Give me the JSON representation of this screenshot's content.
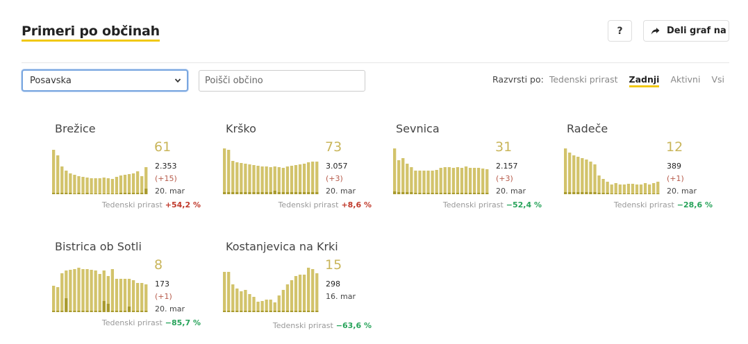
{
  "header": {
    "title": "Primeri po občinah",
    "help_label": "?",
    "share_label": "Deli graf na"
  },
  "controls": {
    "region_selected": "Posavska",
    "search_placeholder": "Poišči občino",
    "sort_label": "Razvrsti po:",
    "sort_options": [
      "Tedenski prirast",
      "Zadnji",
      "Aktivni",
      "Vsi"
    ],
    "sort_active": "Zadnji"
  },
  "colors": {
    "bar": "#d2c36b",
    "bar_dark": "#a89a2e",
    "highlight": "#f0c814",
    "positive": "#c0392b",
    "negative": "#27a35a"
  },
  "weekly_label": "Tedenski prirast",
  "municipalities": [
    {
      "name": "Brežice",
      "current": "61",
      "total": "2.353",
      "delta": "(+15)",
      "date": "20. mar",
      "weekly": "+54,2 %",
      "weekly_sign": "pos",
      "bars": [
        64,
        56,
        40,
        34,
        30,
        28,
        26,
        25,
        24,
        23,
        23,
        23,
        24,
        23,
        22,
        25,
        27,
        28,
        29,
        30,
        33,
        26,
        39
      ],
      "dark": [
        2,
        2,
        2,
        2,
        2,
        1,
        2,
        1,
        2,
        1,
        1,
        1,
        1,
        1,
        1,
        1,
        2,
        2,
        2,
        2,
        2,
        2,
        8
      ]
    },
    {
      "name": "Krško",
      "current": "73",
      "total": "3.057",
      "delta": "(+3)",
      "date": "20. mar",
      "weekly": "+8,6 %",
      "weekly_sign": "pos",
      "bars": [
        66,
        64,
        48,
        46,
        45,
        44,
        43,
        42,
        41,
        40,
        40,
        39,
        40,
        39,
        38,
        40,
        41,
        42,
        43,
        44,
        46,
        47,
        47
      ],
      "dark": [
        3,
        3,
        3,
        3,
        3,
        3,
        3,
        3,
        3,
        3,
        3,
        3,
        5,
        3,
        3,
        3,
        3,
        3,
        3,
        3,
        3,
        3,
        3
      ]
    },
    {
      "name": "Sevnica",
      "current": "31",
      "total": "2.157",
      "delta": "(+3)",
      "date": "20. mar",
      "weekly": "−52,4 %",
      "weekly_sign": "neg",
      "bars": [
        66,
        49,
        52,
        44,
        39,
        34,
        34,
        34,
        34,
        34,
        35,
        38,
        39,
        39,
        38,
        39,
        38,
        40,
        38,
        38,
        38,
        37,
        36
      ],
      "dark": [
        4,
        3,
        3,
        3,
        3,
        2,
        2,
        2,
        2,
        2,
        2,
        2,
        2,
        2,
        2,
        2,
        2,
        2,
        2,
        2,
        2,
        2,
        2
      ]
    },
    {
      "name": "Radeče",
      "current": "12",
      "total": "389",
      "delta": "(+1)",
      "date": "20. mar",
      "weekly": "−28,6 %",
      "weekly_sign": "neg",
      "bars": [
        66,
        60,
        56,
        54,
        52,
        50,
        47,
        43,
        27,
        22,
        18,
        14,
        16,
        14,
        14,
        15,
        15,
        14,
        14,
        16,
        14,
        16,
        18
      ],
      "dark": [
        3,
        3,
        3,
        3,
        3,
        3,
        3,
        3,
        2,
        2,
        2,
        1,
        1,
        1,
        1,
        1,
        1,
        1,
        1,
        1,
        1,
        1,
        1
      ]
    },
    {
      "name": "Bistrica ob Sotli",
      "current": "8",
      "total": "173",
      "delta": "(+1)",
      "date": "20. mar",
      "weekly": "−85,7 %",
      "weekly_sign": "neg",
      "bars": [
        38,
        36,
        56,
        60,
        61,
        62,
        64,
        62,
        62,
        61,
        60,
        55,
        60,
        52,
        62,
        48,
        48,
        48,
        48,
        46,
        42,
        42,
        40
      ],
      "dark": [
        2,
        2,
        2,
        20,
        2,
        2,
        2,
        2,
        2,
        2,
        2,
        2,
        16,
        12,
        2,
        2,
        2,
        2,
        8,
        2,
        2,
        2,
        2
      ]
    },
    {
      "name": "Kostanjevica na Krki",
      "current": "15",
      "total": "298",
      "delta": "",
      "date": "16. mar",
      "weekly": "−63,6 %",
      "weekly_sign": "neg",
      "bars": [
        58,
        58,
        40,
        34,
        30,
        32,
        26,
        22,
        15,
        16,
        18,
        18,
        14,
        24,
        32,
        40,
        46,
        52,
        54,
        54,
        64,
        62,
        56
      ],
      "dark": [
        2,
        2,
        2,
        2,
        2,
        2,
        2,
        2,
        2,
        2,
        2,
        2,
        2,
        2,
        2,
        2,
        2,
        2,
        2,
        2,
        2,
        2,
        2
      ]
    }
  ]
}
